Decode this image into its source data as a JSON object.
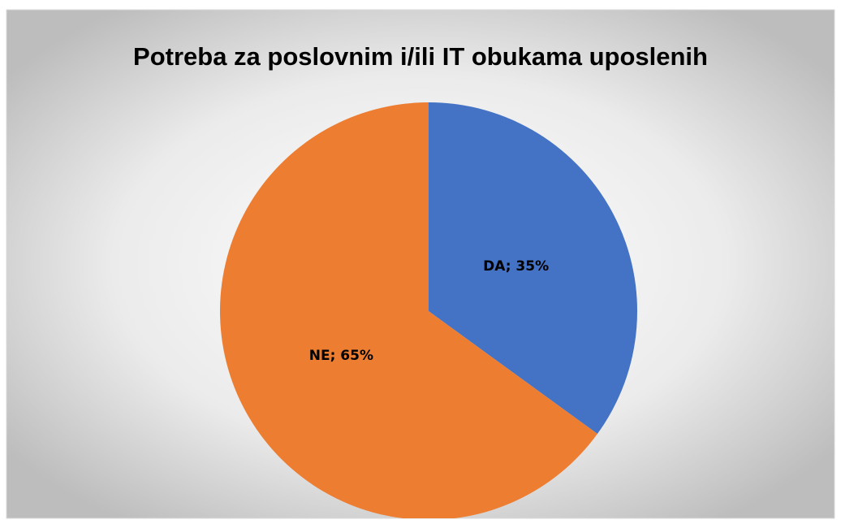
{
  "chart_data": {
    "type": "pie",
    "title": "Potreba za poslovnim i/ili IT obukama uposlenih",
    "categories": [
      "DA",
      "NE"
    ],
    "values": [
      35,
      65
    ],
    "value_labels": [
      "DA; 35%",
      "NE; 65%"
    ],
    "colors": [
      "#4472c4",
      "#ed7d31"
    ]
  }
}
